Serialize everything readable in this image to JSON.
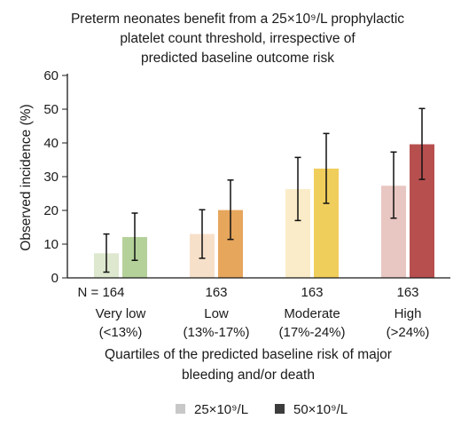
{
  "chart_data": {
    "type": "bar",
    "title_lines": [
      "Preterm neonates benefit from a 25×10⁹/L prophylactic",
      "platelet count threshold, irrespective of",
      "predicted baseline outcome risk"
    ],
    "ylabel": "Observed incidence (%)",
    "xlabel_lines": [
      "Quartiles of the predicted baseline risk of major",
      "bleeding and/or death"
    ],
    "ylim": [
      0,
      60
    ],
    "yticks": [
      "0",
      "10",
      "20",
      "30",
      "40",
      "50",
      "60"
    ],
    "grid": false,
    "categories": [
      {
        "n_label": "N = 164",
        "name": "Very low",
        "range": "(<13%)"
      },
      {
        "n_label": "163",
        "name": "Low",
        "range": "(13%-17%)"
      },
      {
        "n_label": "163",
        "name": "Moderate",
        "range": "(17%-24%)"
      },
      {
        "n_label": "163",
        "name": "High",
        "range": "(>24%)"
      }
    ],
    "series": [
      {
        "name": "25×10⁹/L",
        "values": [
          7.3,
          13.0,
          26.3,
          27.3
        ],
        "error_low": [
          1.7,
          5.8,
          17.0,
          17.7
        ],
        "error_high": [
          13.0,
          20.2,
          35.7,
          37.3
        ],
        "colors": [
          "#dde8cf",
          "#f7e0c9",
          "#faecc8",
          "#e8c6c1"
        ]
      },
      {
        "name": "50×10⁹/L",
        "values": [
          12.1,
          20.1,
          32.4,
          39.6
        ],
        "error_low": [
          5.2,
          11.4,
          22.1,
          29.2
        ],
        "error_high": [
          19.2,
          29.0,
          42.8,
          50.2
        ],
        "colors": [
          "#b4d19a",
          "#e6a65c",
          "#f0ce5c",
          "#b84f4f"
        ]
      }
    ],
    "legend": {
      "placement": "bottom-right",
      "items": [
        {
          "label": "25×10⁹/L",
          "color": "#c8c8c8"
        },
        {
          "label": "50×10⁹/L",
          "color": "#3c3c3c"
        }
      ]
    }
  }
}
